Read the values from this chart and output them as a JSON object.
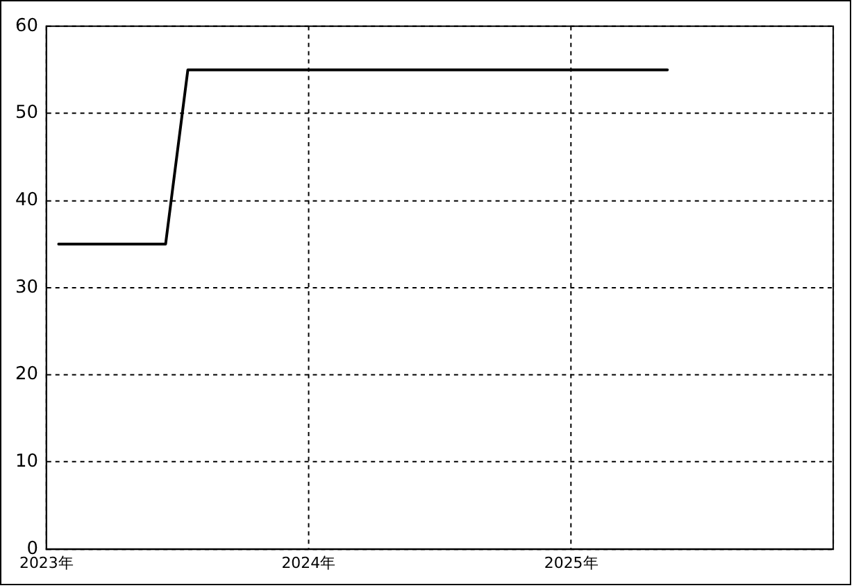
{
  "chart_data": {
    "type": "line",
    "x": [
      "2023-01-18",
      "2023-06-16",
      "2023-07-17",
      "2025-05-15"
    ],
    "series": [
      {
        "color": "#000000",
        "values": [
          35,
          35,
          55,
          55
        ]
      }
    ],
    "xlim": [
      "2023-01-01",
      "2026-01-01"
    ],
    "xticks": [
      {
        "value": "2023-01-01",
        "label": "2023年"
      },
      {
        "value": "2024-01-01",
        "label": "2024年"
      },
      {
        "value": "2025-01-01",
        "label": "2025年"
      },
      {
        "value": "2026-01-01",
        "label": null
      }
    ],
    "ylim": [
      0,
      60
    ],
    "yticks": [
      0,
      10,
      20,
      30,
      40,
      50,
      60
    ],
    "grid": true,
    "legend": false,
    "marker": "none",
    "line_style": "solid"
  }
}
